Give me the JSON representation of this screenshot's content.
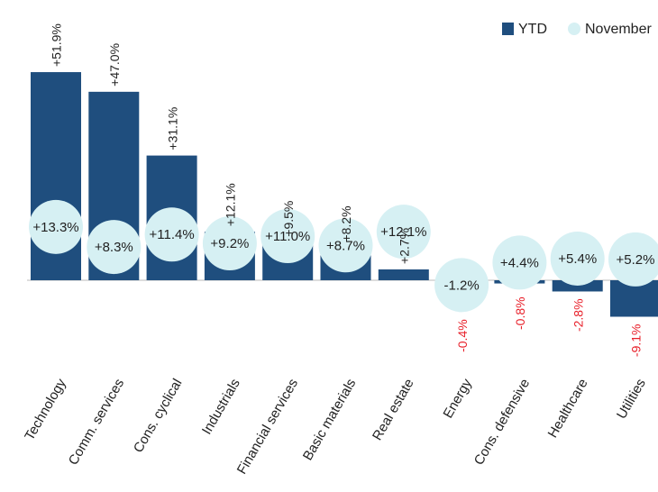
{
  "chart_data": {
    "type": "bar",
    "categories": [
      "Technology",
      "Comm. services",
      "Cons. cyclical",
      "Industrials",
      "Financial services",
      "Basic materials",
      "Real estate",
      "Energy",
      "Cons. defensive",
      "Healthcare",
      "Utilities"
    ],
    "series": [
      {
        "name": "YTD",
        "color": "#1f4e7e",
        "values": [
          51.9,
          47.0,
          31.1,
          12.1,
          9.5,
          8.2,
          2.7,
          -0.4,
          -0.8,
          -2.8,
          -9.1
        ],
        "value_labels": [
          "+51.9%",
          "+47.0%",
          "+31.1%",
          "+12.1%",
          "+9.5%",
          "+8.2%",
          "+2.7%",
          "-0.4%",
          "-0.8%",
          "-2.8%",
          "-9.1%"
        ]
      },
      {
        "name": "November",
        "color": "#d6f0f3",
        "values": [
          13.3,
          8.3,
          11.4,
          9.2,
          11.0,
          8.7,
          12.1,
          -1.2,
          4.4,
          5.4,
          5.2
        ],
        "value_labels": [
          "+13.3%",
          "+8.3%",
          "+11.4%",
          "+9.2%",
          "+11.0%",
          "+8.7%",
          "+12.1%",
          "-1.2%",
          "+4.4%",
          "+5.4%",
          "+5.2%"
        ]
      }
    ],
    "negative_label_color": "#e8202a",
    "legend": "top-right"
  }
}
